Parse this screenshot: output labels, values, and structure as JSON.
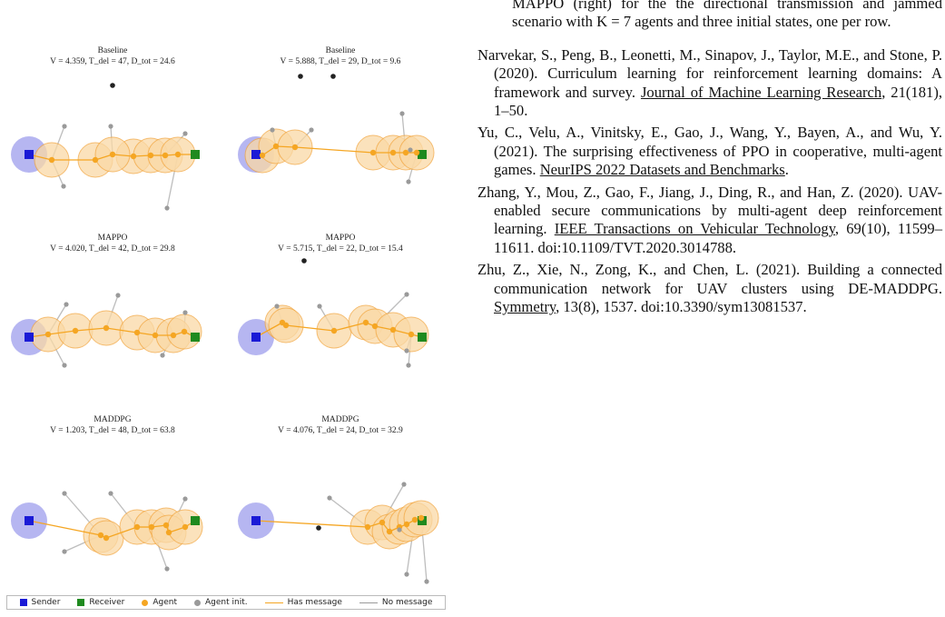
{
  "figure": {
    "panels": [
      {
        "method": "Baseline",
        "metrics": {
          "V": "4.359",
          "T_del": "47",
          "D_tot": "24.6"
        }
      },
      {
        "method": "Baseline",
        "metrics": {
          "V": "5.888",
          "T_del": "29",
          "D_tot": "9.6"
        }
      },
      {
        "method": "MAPPO",
        "metrics": {
          "V": "4.020",
          "T_del": "42",
          "D_tot": "29.8"
        }
      },
      {
        "method": "MAPPO",
        "metrics": {
          "V": "5.715",
          "T_del": "22",
          "D_tot": "15.4"
        }
      },
      {
        "method": "MADDPG",
        "metrics": {
          "V": "1.203",
          "T_del": "48",
          "D_tot": "63.8"
        }
      },
      {
        "method": "MADDPG",
        "metrics": {
          "V": "4.076",
          "T_del": "24",
          "D_tot": "32.9"
        }
      }
    ],
    "legend": {
      "sender": "Sender",
      "receiver": "Receiver",
      "agent": "Agent",
      "agent_init": "Agent init.",
      "has_message": "Has message",
      "no_message": "No message"
    },
    "colors": {
      "sender": "#1a1ad6",
      "sender_zone": "#a9a9ef",
      "receiver": "#1f8a1f",
      "agent": "#f5a623",
      "agent_zone": "#fad9a6",
      "agent_zone_edge": "#f2a640",
      "has_message": "#f5a623",
      "no_message": "#bdbdbd",
      "agent_init": "#9a9a9a",
      "jammer": "#222222"
    }
  },
  "text": {
    "caption_continuation": "MAPPO (right) for the the directional transmission and jammed scenario with K = 7 agents and three initial states, one per row.",
    "references": [
      {
        "pre": "Narvekar, S., Peng, B., Leonetti, M., Sinapov, J., Taylor, M.E., and Stone, P. (2020). Curriculum learning for reinforcement learning domains: A framework and survey. ",
        "venue": "Journal of Machine Learning Research",
        "post": ", 21(181), 1–50."
      },
      {
        "pre": "Yu, C., Velu, A., Vinitsky, E., Gao, J., Wang, Y., Bayen, A., and Wu, Y. (2021). The surprising effectiveness of PPO in cooperative, multi-agent games. ",
        "venue": "NeurIPS 2022 Datasets and Benchmarks",
        "post": "."
      },
      {
        "pre": "Zhang, Y., Mou, Z., Gao, F., Jiang, J., Ding, R., and Han, Z. (2020). UAV-enabled secure communications by multi-agent deep reinforcement learning. ",
        "venue": "IEEE Transactions on Vehicular Technology",
        "post": ", 69(10), 11599–11611. doi:10.1109/TVT.2020.3014788."
      },
      {
        "pre": "Zhu, Z., Xie, N., Zong, K., and Chen, L. (2021). Building a connected communication network for UAV clusters using DE-MADDPG. ",
        "venue": "Symmetry",
        "post": ", 13(8), 1537. doi:10.3390/sym13081537."
      }
    ]
  }
}
